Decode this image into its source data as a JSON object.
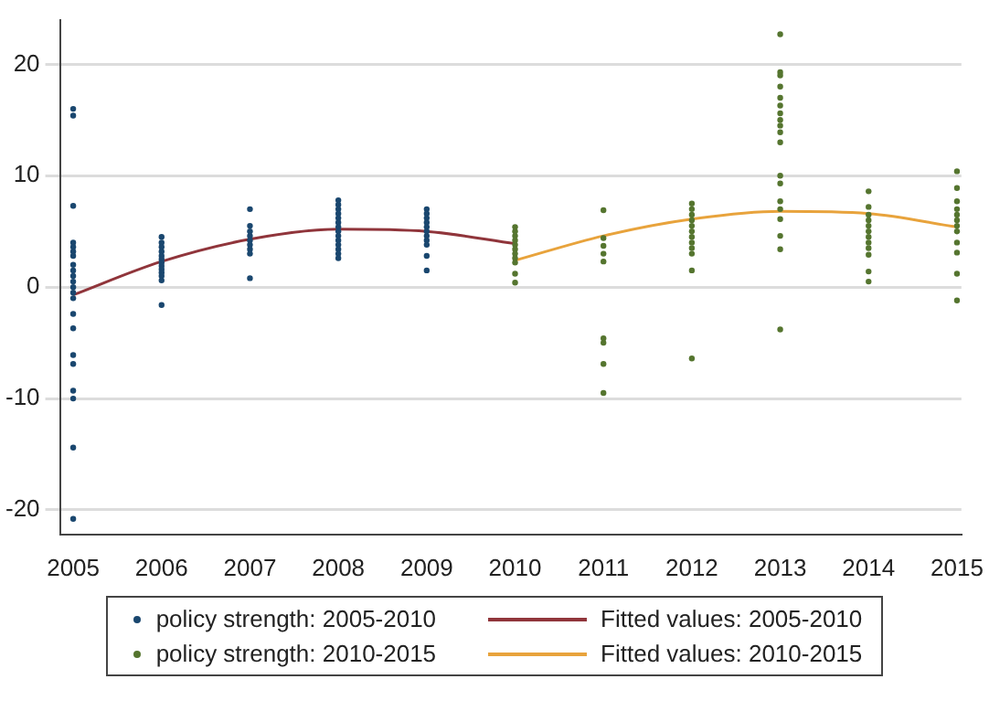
{
  "chart_data": {
    "type": "scatter",
    "xlim": [
      2004.85,
      2015.05
    ],
    "ylim": [
      -22.2,
      24
    ],
    "xticks": [
      2005,
      2006,
      2007,
      2008,
      2009,
      2010,
      2011,
      2012,
      2013,
      2014,
      2015
    ],
    "yticks": [
      -20,
      -10,
      0,
      10,
      20
    ],
    "grid": "y",
    "legend": "bottom",
    "series": [
      {
        "name": "policy strength: 2005-2010",
        "type": "scatter",
        "marker": "circle",
        "color": "#1a476f",
        "x": [
          2005,
          2005,
          2005,
          2005,
          2005,
          2005,
          2005,
          2005,
          2005,
          2005,
          2005,
          2005,
          2005,
          2005,
          2005,
          2005,
          2005,
          2005,
          2005,
          2005,
          2005,
          2005,
          2006,
          2006,
          2006,
          2006,
          2006,
          2006,
          2006,
          2006,
          2006,
          2006,
          2006,
          2006,
          2006,
          2007,
          2007,
          2007,
          2007,
          2007,
          2007,
          2007,
          2007,
          2007,
          2008,
          2008,
          2008,
          2008,
          2008,
          2008,
          2008,
          2008,
          2008,
          2008,
          2008,
          2008,
          2008,
          2008,
          2009,
          2009,
          2009,
          2009,
          2009,
          2009,
          2009,
          2009,
          2009,
          2009,
          2009
        ],
        "values": [
          16,
          15.4,
          7.3,
          4,
          3.6,
          3.2,
          2.8,
          2,
          1.5,
          1,
          0.5,
          0,
          -0.5,
          -1,
          -2.4,
          -3.7,
          -6.1,
          -6.9,
          -9.3,
          -10,
          -14.4,
          -20.8,
          4.5,
          4,
          3.6,
          3.2,
          2.8,
          2.5,
          2.2,
          1.9,
          1.6,
          1.3,
          1,
          0.6,
          -1.6,
          7,
          5.5,
          5,
          4.6,
          4.2,
          3.8,
          3.4,
          3,
          0.8,
          7.8,
          7.4,
          7,
          6.6,
          6.2,
          5.8,
          5.4,
          5,
          4.6,
          4.2,
          3.8,
          3.4,
          3,
          2.6,
          7,
          6.6,
          6.2,
          5.8,
          5.4,
          5,
          4.6,
          4.2,
          3.8,
          2.8,
          1.5
        ]
      },
      {
        "name": "policy strength: 2010-2015",
        "type": "scatter",
        "marker": "circle",
        "color": "#55752f",
        "x": [
          2010,
          2010,
          2010,
          2010,
          2010,
          2010,
          2010,
          2010,
          2010,
          2010,
          2010,
          2011,
          2011,
          2011,
          2011,
          2011,
          2011,
          2011,
          2011,
          2011,
          2012,
          2012,
          2012,
          2012,
          2012,
          2012,
          2012,
          2012,
          2012,
          2012,
          2012,
          2012,
          2013,
          2013,
          2013,
          2013,
          2013,
          2013,
          2013,
          2013,
          2013,
          2013,
          2013,
          2013,
          2013,
          2013,
          2013,
          2013,
          2013,
          2013,
          2013,
          2014,
          2014,
          2014,
          2014,
          2014,
          2014,
          2014,
          2014,
          2014,
          2014,
          2014,
          2014,
          2015,
          2015,
          2015,
          2015,
          2015,
          2015,
          2015,
          2015,
          2015,
          2015,
          2015,
          2015
        ],
        "values": [
          5.4,
          5,
          4.6,
          4.2,
          3.8,
          3.4,
          3,
          2.6,
          2.2,
          1.2,
          0.4,
          6.9,
          4.4,
          3.7,
          3,
          2.3,
          -4.6,
          -5,
          -6.9,
          -9.5,
          7.5,
          7,
          6.5,
          6,
          5.5,
          5,
          4.5,
          4,
          3.5,
          3,
          1.5,
          -6.4,
          22.7,
          19.3,
          19,
          18,
          17,
          16.3,
          15.6,
          15,
          14.5,
          13.9,
          13,
          10,
          9.3,
          7.7,
          7,
          6.1,
          4.6,
          3.4,
          -3.8,
          8.6,
          7.2,
          6.5,
          6,
          5.5,
          5,
          4.5,
          4,
          3.5,
          2.9,
          1.4,
          0.5,
          10.4,
          8.9,
          7.7,
          7,
          6.5,
          6,
          5.5,
          5,
          4,
          3.1,
          1.2,
          -1.2
        ]
      },
      {
        "name": "Fitted values: 2005-2010",
        "type": "line",
        "marker": "none",
        "color": "#90353b",
        "x": [
          2005,
          2006,
          2007,
          2008,
          2009,
          2010
        ],
        "values": [
          -0.7,
          2.3,
          4.3,
          5.2,
          5,
          3.9
        ]
      },
      {
        "name": "Fitted values: 2010-2015",
        "type": "line",
        "marker": "none",
        "color": "#e8a33c",
        "x": [
          2010,
          2011,
          2012,
          2013,
          2014,
          2015
        ],
        "values": [
          2.4,
          4.6,
          6.1,
          6.8,
          6.6,
          5.4
        ]
      }
    ]
  }
}
